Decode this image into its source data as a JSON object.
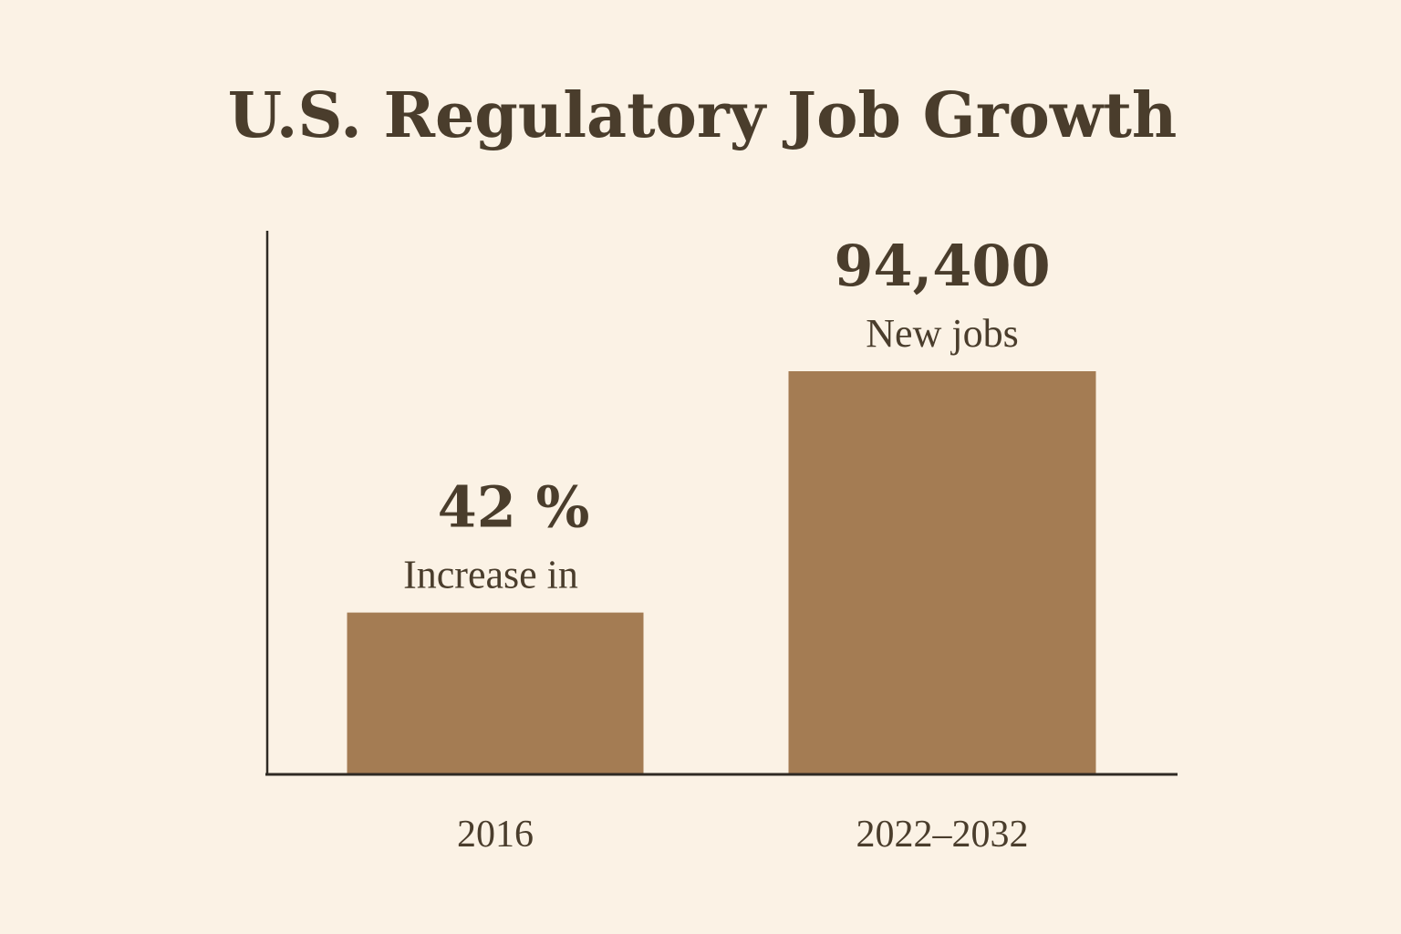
{
  "chart_data": {
    "type": "bar",
    "title": "U.S. Regulatory Job Growth",
    "xlabel": "",
    "ylabel": "",
    "categories": [
      "2016",
      "2022–2032"
    ],
    "series": [
      {
        "values": [
          40,
          100
        ],
        "value_labels": [
          "42 %",
          "94,400"
        ],
        "captions": [
          "Increase in",
          "New jobs"
        ]
      }
    ],
    "ylim": [
      0,
      100
    ],
    "grid": false,
    "legend": "none"
  },
  "colors": {
    "background": "#fbf2e5",
    "bar": "#a47c53",
    "text": "#4a3d2c",
    "axis": "#2f2a24"
  }
}
